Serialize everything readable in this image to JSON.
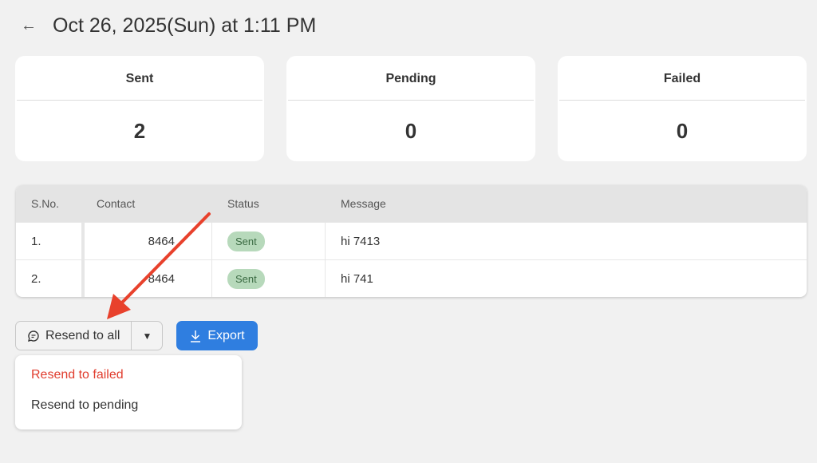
{
  "header": {
    "back_icon": "arrow-left-icon",
    "title": "Oct 26, 2025(Sun) at 1:11 PM"
  },
  "stats": [
    {
      "label": "Sent",
      "value": "2"
    },
    {
      "label": "Pending",
      "value": "0"
    },
    {
      "label": "Failed",
      "value": "0"
    }
  ],
  "table": {
    "columns": [
      "S.No.",
      "Contact",
      "Status",
      "Message"
    ],
    "rows": [
      {
        "sno": "1.",
        "contact": "8464",
        "status": "Sent",
        "message": "hi 7413"
      },
      {
        "sno": "2.",
        "contact": "8464",
        "status": "Sent",
        "message": "hi 741"
      }
    ]
  },
  "actions": {
    "resend_all": "Resend to all",
    "resend_icon": "chat-bubble-icon",
    "export": "Export",
    "export_icon": "download-icon"
  },
  "menu": [
    {
      "label": "Resend to failed",
      "color": "#e03c2d"
    },
    {
      "label": "Resend to pending",
      "color": "#333333"
    }
  ],
  "annotation": {
    "arrow_color": "#e8412c"
  }
}
